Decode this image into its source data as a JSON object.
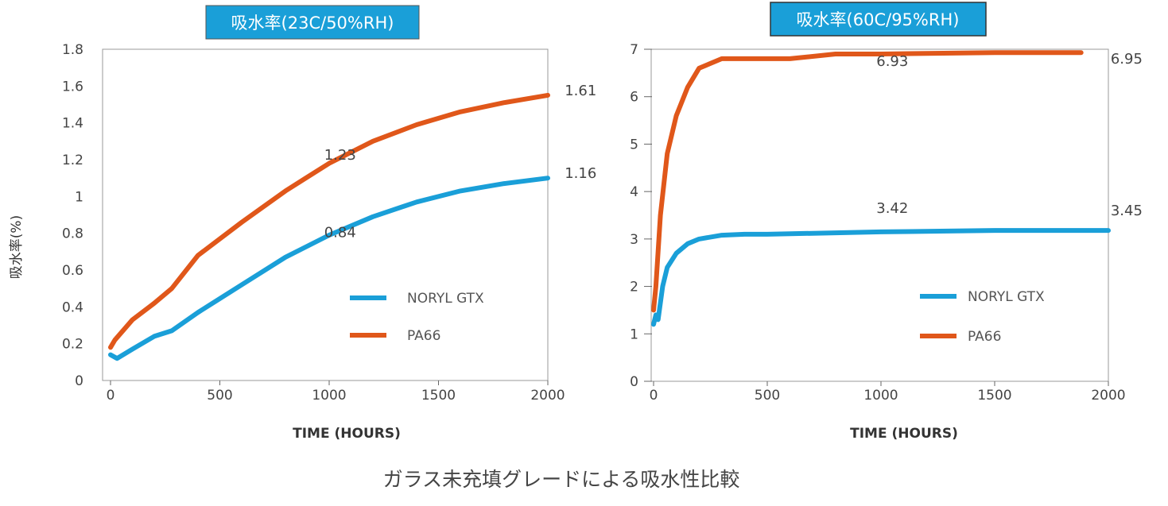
{
  "caption": "ガラス未充填グレードによる吸水性比較",
  "shared_ylabel": "吸水率(%)",
  "colors": {
    "noryl": "#1a9fd8",
    "pa66": "#e0571a",
    "title_bg": "#1a9fd8",
    "axis": "#888888"
  },
  "chart_data": [
    {
      "type": "line",
      "title": "吸水率(23C/50%RH)",
      "xlabel": "TIME (HOURS)",
      "ylabel": "吸水率(%)",
      "xlim": [
        0,
        2000
      ],
      "ylim": [
        0,
        1.8
      ],
      "x_ticks": [
        "0",
        "500",
        "1000",
        "1500",
        "2000"
      ],
      "y_ticks": [
        "0",
        "0.2",
        "0.4",
        "0.6",
        "0.8",
        "1",
        "1.2",
        "1.4",
        "1.6",
        "1.8"
      ],
      "legend": [
        "NORYL GTX",
        "PA66"
      ],
      "series": [
        {
          "name": "NORYL GTX",
          "color": "#1a9fd8",
          "x": [
            0,
            30,
            100,
            200,
            280,
            400,
            600,
            800,
            1000,
            1200,
            1400,
            1600,
            1800,
            2000
          ],
          "y": [
            0.14,
            0.12,
            0.17,
            0.24,
            0.27,
            0.37,
            0.52,
            0.67,
            0.79,
            0.89,
            0.97,
            1.03,
            1.07,
            1.1
          ]
        },
        {
          "name": "PA66",
          "color": "#e0571a",
          "x": [
            0,
            20,
            100,
            200,
            280,
            400,
            600,
            800,
            1000,
            1200,
            1400,
            1600,
            1800,
            2000
          ],
          "y": [
            0.18,
            0.22,
            0.33,
            0.42,
            0.5,
            0.68,
            0.86,
            1.03,
            1.18,
            1.3,
            1.39,
            1.46,
            1.51,
            1.55
          ]
        }
      ],
      "annotations": [
        {
          "text": "1.23",
          "x": 1050,
          "y": 1.2
        },
        {
          "text": "0.84",
          "x": 1050,
          "y": 0.78
        },
        {
          "text": "1.61",
          "x": 2150,
          "y": 1.55
        },
        {
          "text": "1.16",
          "x": 2150,
          "y": 1.1
        }
      ]
    },
    {
      "type": "line",
      "title": "吸水率(60C/95%RH)",
      "xlabel": "TIME (HOURS)",
      "xlim": [
        0,
        2000
      ],
      "ylim": [
        0,
        7
      ],
      "x_ticks": [
        "0",
        "500",
        "1000",
        "1500",
        "2000"
      ],
      "y_ticks": [
        "0",
        "1",
        "2",
        "3",
        "4",
        "5",
        "6",
        "7"
      ],
      "legend": [
        "NORYL GTX",
        "PA66"
      ],
      "series": [
        {
          "name": "NORYL GTX",
          "color": "#1a9fd8",
          "x": [
            0,
            10,
            20,
            40,
            60,
            100,
            150,
            200,
            300,
            400,
            500,
            800,
            1000,
            1500,
            2000
          ],
          "y": [
            1.2,
            1.4,
            1.3,
            2.0,
            2.4,
            2.7,
            2.9,
            3.0,
            3.08,
            3.1,
            3.1,
            3.13,
            3.15,
            3.18,
            3.18
          ]
        },
        {
          "name": "PA66",
          "color": "#e0571a",
          "x": [
            0,
            10,
            30,
            60,
            100,
            150,
            200,
            300,
            400,
            600,
            800,
            1000,
            1500,
            1880
          ],
          "y": [
            1.5,
            2.0,
            3.5,
            4.8,
            5.6,
            6.2,
            6.6,
            6.8,
            6.8,
            6.8,
            6.9,
            6.9,
            6.93,
            6.93
          ]
        }
      ],
      "annotations": [
        {
          "text": "6.93",
          "x": 1050,
          "y": 6.65
        },
        {
          "text": "3.42",
          "x": 1050,
          "y": 3.55
        },
        {
          "text": "6.95",
          "x": 2080,
          "y": 6.7
        },
        {
          "text": "3.45",
          "x": 2080,
          "y": 3.5
        }
      ]
    }
  ]
}
